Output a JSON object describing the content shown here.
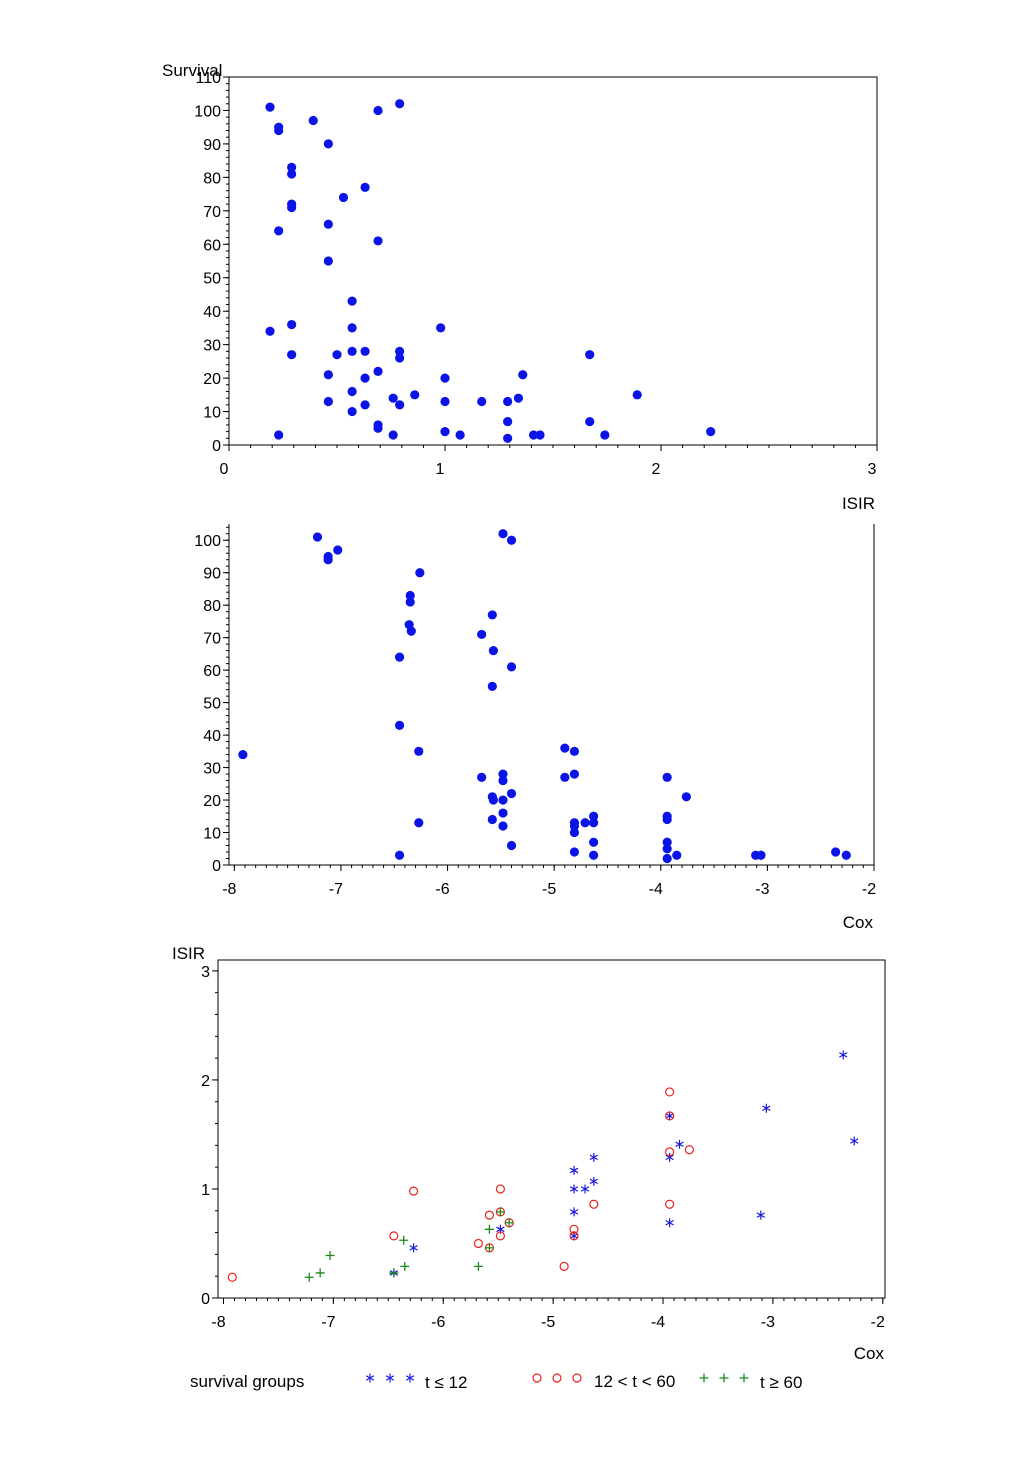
{
  "colors": {
    "dot": "#0a14e6",
    "star": "#1b1bd9",
    "circle": "#e8231c",
    "plus": "#1a8a1a",
    "axis": "#000000"
  },
  "legend": {
    "title": "survival groups",
    "items": [
      {
        "marker": "star",
        "label": "t ≤ 12"
      },
      {
        "marker": "circle",
        "label": "12 < t < 60"
      },
      {
        "marker": "plus",
        "label": "t ≥ 60"
      }
    ]
  },
  "chart_data": [
    {
      "type": "scatter",
      "title": "",
      "xlabel": "ISIR",
      "ylabel": "Survival",
      "xlim": [
        0,
        3
      ],
      "ylim": [
        0,
        110
      ],
      "xticks": [
        0,
        1,
        2,
        3
      ],
      "yticks": [
        0,
        10,
        20,
        30,
        40,
        50,
        60,
        70,
        80,
        90,
        100,
        110
      ],
      "frame": "box",
      "points": [
        [
          0.19,
          101
        ],
        [
          0.19,
          34
        ],
        [
          0.23,
          95
        ],
        [
          0.23,
          94
        ],
        [
          0.23,
          64
        ],
        [
          0.23,
          3
        ],
        [
          0.29,
          83
        ],
        [
          0.29,
          81
        ],
        [
          0.29,
          72
        ],
        [
          0.29,
          71
        ],
        [
          0.29,
          36
        ],
        [
          0.29,
          27
        ],
        [
          0.39,
          97
        ],
        [
          0.46,
          90
        ],
        [
          0.46,
          66
        ],
        [
          0.46,
          55
        ],
        [
          0.46,
          21
        ],
        [
          0.46,
          13
        ],
        [
          0.5,
          27
        ],
        [
          0.53,
          74
        ],
        [
          0.57,
          43
        ],
        [
          0.57,
          35
        ],
        [
          0.57,
          28
        ],
        [
          0.57,
          16
        ],
        [
          0.57,
          10
        ],
        [
          0.63,
          77
        ],
        [
          0.63,
          28
        ],
        [
          0.63,
          20
        ],
        [
          0.63,
          12
        ],
        [
          0.69,
          100
        ],
        [
          0.69,
          61
        ],
        [
          0.69,
          22
        ],
        [
          0.69,
          6
        ],
        [
          0.69,
          5
        ],
        [
          0.76,
          14
        ],
        [
          0.76,
          3
        ],
        [
          0.79,
          102
        ],
        [
          0.79,
          28
        ],
        [
          0.79,
          26
        ],
        [
          0.79,
          12
        ],
        [
          0.86,
          15
        ],
        [
          0.98,
          35
        ],
        [
          1.0,
          20
        ],
        [
          1.0,
          13
        ],
        [
          1.0,
          4
        ],
        [
          1.07,
          3
        ],
        [
          1.17,
          13
        ],
        [
          1.29,
          13
        ],
        [
          1.29,
          7
        ],
        [
          1.29,
          2
        ],
        [
          1.34,
          14
        ],
        [
          1.36,
          21
        ],
        [
          1.41,
          3
        ],
        [
          1.44,
          3
        ],
        [
          1.67,
          27
        ],
        [
          1.67,
          7
        ],
        [
          1.74,
          3
        ],
        [
          1.89,
          15
        ],
        [
          2.23,
          4
        ]
      ]
    },
    {
      "type": "scatter",
      "title": "",
      "xlabel": "Cox",
      "ylabel": "",
      "xlim": [
        -8.05,
        -2
      ],
      "ylim": [
        0,
        105
      ],
      "xticks": [
        -8,
        -7,
        -6,
        -5,
        -4,
        -3,
        -2
      ],
      "yticks": [
        0,
        10,
        20,
        30,
        40,
        50,
        60,
        70,
        80,
        90,
        100
      ],
      "frame": "open",
      "points": [
        [
          -7.92,
          34
        ],
        [
          -7.22,
          101
        ],
        [
          -7.12,
          95
        ],
        [
          -7.12,
          94
        ],
        [
          -7.03,
          97
        ],
        [
          -6.45,
          64
        ],
        [
          -6.45,
          43
        ],
        [
          -6.45,
          3
        ],
        [
          -6.35,
          83
        ],
        [
          -6.35,
          81
        ],
        [
          -6.36,
          74
        ],
        [
          -6.34,
          72
        ],
        [
          -6.26,
          90
        ],
        [
          -6.27,
          35
        ],
        [
          -6.27,
          13
        ],
        [
          -5.68,
          71
        ],
        [
          -5.68,
          27
        ],
        [
          -5.58,
          77
        ],
        [
          -5.57,
          66
        ],
        [
          -5.58,
          55
        ],
        [
          -5.58,
          21
        ],
        [
          -5.57,
          20
        ],
        [
          -5.58,
          14
        ],
        [
          -5.48,
          102
        ],
        [
          -5.48,
          28
        ],
        [
          -5.48,
          26
        ],
        [
          -5.48,
          20
        ],
        [
          -5.48,
          16
        ],
        [
          -5.48,
          12
        ],
        [
          -5.4,
          100
        ],
        [
          -5.4,
          61
        ],
        [
          -5.4,
          22
        ],
        [
          -5.4,
          6
        ],
        [
          -4.9,
          36
        ],
        [
          -4.9,
          27
        ],
        [
          -4.81,
          35
        ],
        [
          -4.81,
          28
        ],
        [
          -4.81,
          13
        ],
        [
          -4.81,
          12
        ],
        [
          -4.81,
          10
        ],
        [
          -4.81,
          4
        ],
        [
          -4.71,
          13
        ],
        [
          -4.63,
          15
        ],
        [
          -4.63,
          13
        ],
        [
          -4.63,
          7
        ],
        [
          -4.63,
          3
        ],
        [
          -3.94,
          27
        ],
        [
          -3.94,
          15
        ],
        [
          -3.94,
          14
        ],
        [
          -3.94,
          7
        ],
        [
          -3.94,
          5
        ],
        [
          -3.94,
          2
        ],
        [
          -3.85,
          3
        ],
        [
          -3.76,
          21
        ],
        [
          -3.11,
          3
        ],
        [
          -3.06,
          3
        ],
        [
          -2.36,
          4
        ],
        [
          -2.26,
          3
        ]
      ]
    },
    {
      "type": "scatter",
      "title": "",
      "xlabel": "Cox",
      "ylabel": "ISIR",
      "xlim": [
        -8.05,
        -1.98
      ],
      "ylim": [
        0,
        3.1
      ],
      "xticks": [
        -8,
        -7,
        -6,
        -5,
        -4,
        -3,
        -2
      ],
      "yticks": [
        0,
        1,
        2,
        3
      ],
      "frame": "box",
      "series": [
        {
          "name": "t ≤ 12",
          "marker": "star",
          "points": [
            [
              -6.45,
              0.23
            ],
            [
              -6.27,
              0.46
            ],
            [
              -5.48,
              0.63
            ],
            [
              -4.81,
              1.17
            ],
            [
              -4.81,
              1.0
            ],
            [
              -4.81,
              0.79
            ],
            [
              -4.81,
              0.57
            ],
            [
              -4.71,
              1.0
            ],
            [
              -4.63,
              1.29
            ],
            [
              -4.63,
              1.07
            ],
            [
              -3.94,
              1.67
            ],
            [
              -3.94,
              1.29
            ],
            [
              -3.94,
              0.69
            ],
            [
              -3.85,
              1.41
            ],
            [
              -3.11,
              0.76
            ],
            [
              -3.06,
              1.74
            ],
            [
              -2.36,
              2.23
            ],
            [
              -2.26,
              1.44
            ]
          ]
        },
        {
          "name": "12 < t < 60",
          "marker": "circle",
          "points": [
            [
              -7.92,
              0.19
            ],
            [
              -6.45,
              0.57
            ],
            [
              -6.27,
              0.98
            ],
            [
              -5.68,
              0.5
            ],
            [
              -5.58,
              0.76
            ],
            [
              -5.58,
              0.46
            ],
            [
              -5.48,
              1.0
            ],
            [
              -5.48,
              0.79
            ],
            [
              -5.48,
              0.57
            ],
            [
              -5.4,
              0.69
            ],
            [
              -4.9,
              0.29
            ],
            [
              -4.81,
              0.63
            ],
            [
              -4.81,
              0.57
            ],
            [
              -4.63,
              0.86
            ],
            [
              -3.94,
              1.89
            ],
            [
              -3.94,
              1.67
            ],
            [
              -3.94,
              1.34
            ],
            [
              -3.94,
              0.86
            ],
            [
              -3.76,
              1.36
            ]
          ]
        },
        {
          "name": "t ≥ 60",
          "marker": "plus",
          "points": [
            [
              -7.22,
              0.19
            ],
            [
              -7.12,
              0.23
            ],
            [
              -7.03,
              0.39
            ],
            [
              -6.45,
              0.23
            ],
            [
              -6.36,
              0.53
            ],
            [
              -6.35,
              0.29
            ],
            [
              -5.68,
              0.29
            ],
            [
              -5.58,
              0.63
            ],
            [
              -5.58,
              0.46
            ],
            [
              -5.48,
              0.79
            ],
            [
              -5.4,
              0.69
            ]
          ]
        }
      ]
    }
  ]
}
